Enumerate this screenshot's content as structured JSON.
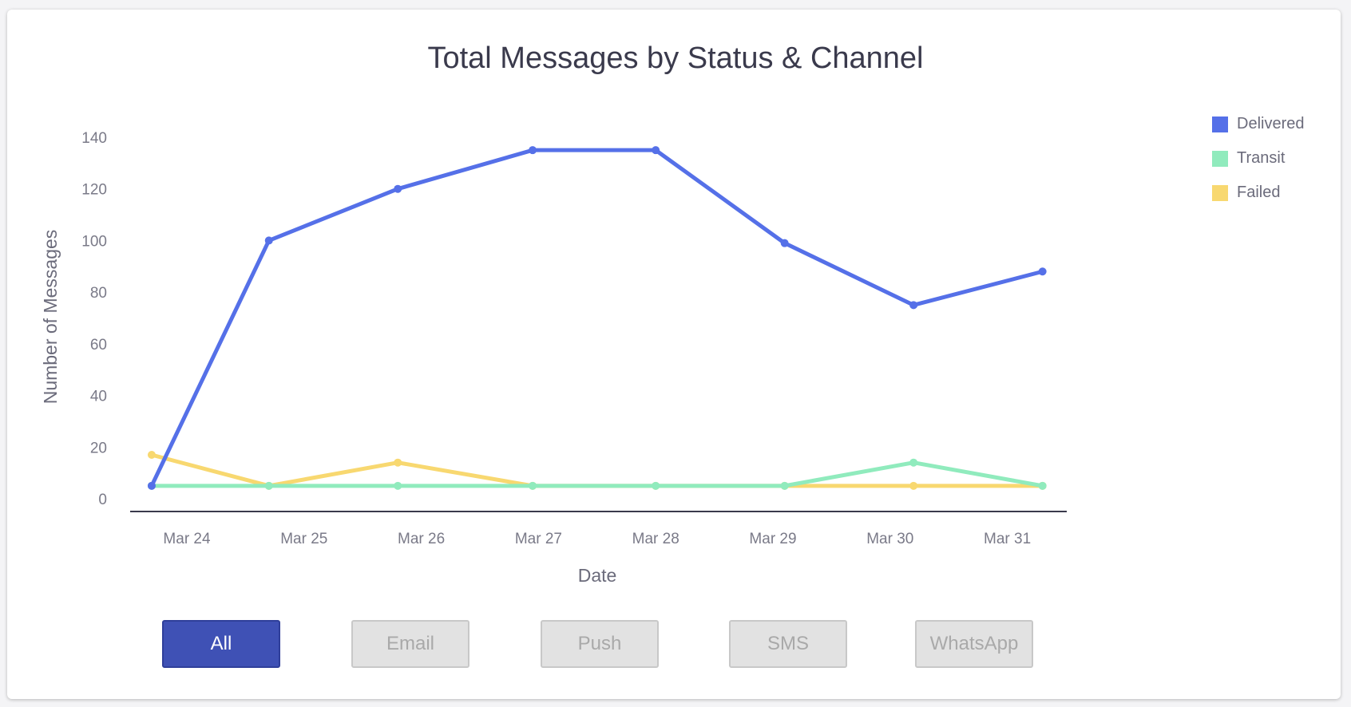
{
  "chart_data": {
    "type": "line",
    "title": "Total Messages by Status & Channel",
    "xlabel": "Date",
    "ylabel": "Number of Messages",
    "categories": [
      "Mar 24",
      "Mar 25",
      "Mar 26",
      "Mar 27",
      "Mar 28",
      "Mar 29",
      "Mar 30",
      "Mar 31"
    ],
    "x_days_offset": [
      -0.3,
      0.7,
      1.8,
      2.95,
      4.0,
      5.1,
      6.2,
      7.3
    ],
    "yticks": [
      0,
      20,
      40,
      60,
      80,
      100,
      120,
      140
    ],
    "ylim": [
      0,
      140
    ],
    "legend_position": "top-right",
    "series": [
      {
        "name": "Delivered",
        "color": "#5570e8",
        "values": [
          5,
          100,
          120,
          135,
          135,
          99,
          75,
          88
        ]
      },
      {
        "name": "Transit",
        "color": "#90ebbd",
        "values": [
          5,
          5,
          5,
          5,
          5,
          5,
          14,
          5
        ]
      },
      {
        "name": "Failed",
        "color": "#f8d870",
        "values": [
          17,
          5,
          14,
          5,
          5,
          5,
          5,
          5
        ]
      }
    ]
  },
  "filters": {
    "buttons": [
      "All",
      "Email",
      "Push",
      "SMS",
      "WhatsApp"
    ],
    "active": "All"
  }
}
